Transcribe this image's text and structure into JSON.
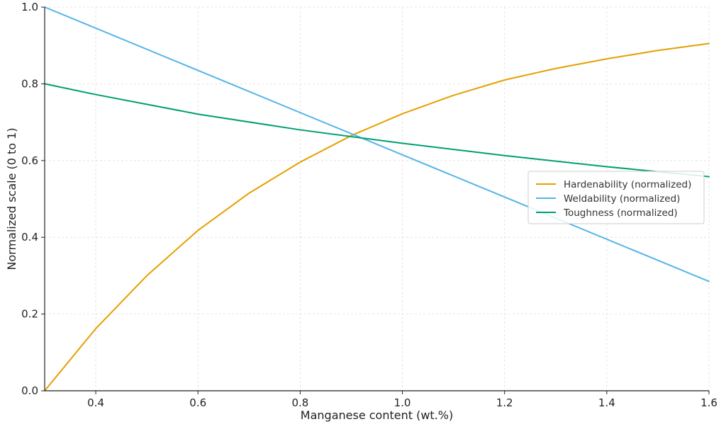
{
  "chart_data": {
    "type": "line",
    "title": "",
    "xlabel": "Manganese content (wt.%)",
    "ylabel": "Normalized scale (0 to 1)",
    "xlim": [
      0.3,
      1.6
    ],
    "ylim": [
      0.0,
      1.0
    ],
    "x_ticks": [
      "0.4",
      "0.6",
      "0.8",
      "1.0",
      "1.2",
      "1.4",
      "1.6"
    ],
    "y_ticks": [
      "0.0",
      "0.2",
      "0.4",
      "0.6",
      "0.8",
      "1.0"
    ],
    "grid": true,
    "legend_position": "center-right",
    "series": [
      {
        "name": "Hardenability (normalized)",
        "color": "#E69F00",
        "x": [
          0.3,
          0.4,
          0.5,
          0.6,
          0.7,
          0.8,
          0.9,
          1.0,
          1.1,
          1.2,
          1.3,
          1.4,
          1.5,
          1.6
        ],
        "y": [
          0.0,
          0.162,
          0.3,
          0.418,
          0.515,
          0.596,
          0.665,
          0.722,
          0.77,
          0.81,
          0.84,
          0.865,
          0.887,
          0.905
        ]
      },
      {
        "name": "Weldability (normalized)",
        "color": "#56B4E9",
        "x": [
          0.3,
          1.6
        ],
        "y": [
          1.0,
          0.285
        ]
      },
      {
        "name": "Toughness (normalized)",
        "color": "#009E73",
        "x": [
          0.3,
          0.4,
          0.6,
          0.8,
          1.0,
          1.2,
          1.4,
          1.6
        ],
        "y": [
          0.8,
          0.772,
          0.721,
          0.68,
          0.645,
          0.613,
          0.584,
          0.558
        ]
      }
    ]
  }
}
